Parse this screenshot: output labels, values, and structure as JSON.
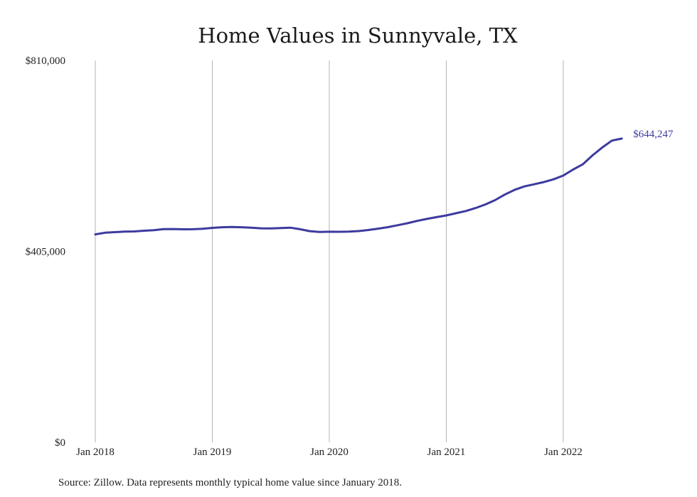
{
  "chart_data": {
    "type": "line",
    "title": "Home Values in Sunnyvale, TX",
    "xlabel": "",
    "ylabel": "",
    "x_ticks": [
      "Jan 2018",
      "Jan 2019",
      "Jan 2020",
      "Jan 2021",
      "Jan 2022"
    ],
    "y_ticks": [
      "$810,000",
      "$405,000",
      "$0"
    ],
    "ylim": [
      0,
      810000
    ],
    "xlim": [
      "2018-01",
      "2022-07"
    ],
    "grid": "vertical",
    "line_color": "#3d3a9e",
    "grid_color": "#b3b3b3",
    "end_label": "$644,247",
    "series": [
      {
        "x": [
          "2018-01",
          "2018-02",
          "2018-03",
          "2018-04",
          "2018-05",
          "2018-06",
          "2018-07",
          "2018-08",
          "2018-09",
          "2018-10",
          "2018-11",
          "2018-12",
          "2019-01",
          "2019-02",
          "2019-03",
          "2019-04",
          "2019-05",
          "2019-06",
          "2019-07",
          "2019-08",
          "2019-09",
          "2019-10",
          "2019-11",
          "2019-12",
          "2020-01",
          "2020-02",
          "2020-03",
          "2020-04",
          "2020-05",
          "2020-06",
          "2020-07",
          "2020-08",
          "2020-09",
          "2020-10",
          "2020-11",
          "2020-12",
          "2021-01",
          "2021-02",
          "2021-03",
          "2021-04",
          "2021-05",
          "2021-06",
          "2021-07",
          "2021-08",
          "2021-09",
          "2021-10",
          "2021-11",
          "2021-12",
          "2022-01",
          "2022-02",
          "2022-03",
          "2022-04",
          "2022-05",
          "2022-06",
          "2022-07"
        ],
        "values": [
          441000,
          444500,
          445800,
          447000,
          447300,
          448800,
          450000,
          452200,
          452400,
          451800,
          451900,
          452900,
          454800,
          456200,
          456600,
          456200,
          455300,
          453900,
          453600,
          454500,
          455300,
          451900,
          447800,
          446100,
          446700,
          446500,
          446900,
          448000,
          450200,
          453100,
          456300,
          460400,
          464600,
          469500,
          473800,
          477500,
          481200,
          485900,
          490600,
          496800,
          504400,
          513600,
          525300,
          535300,
          542700,
          547300,
          551900,
          557800,
          565800,
          578400,
          589700,
          608700,
          625400,
          640000,
          644247
        ]
      }
    ]
  },
  "footer": {
    "source": "Source: Zillow. Data represents monthly typical home value since January 2018."
  }
}
